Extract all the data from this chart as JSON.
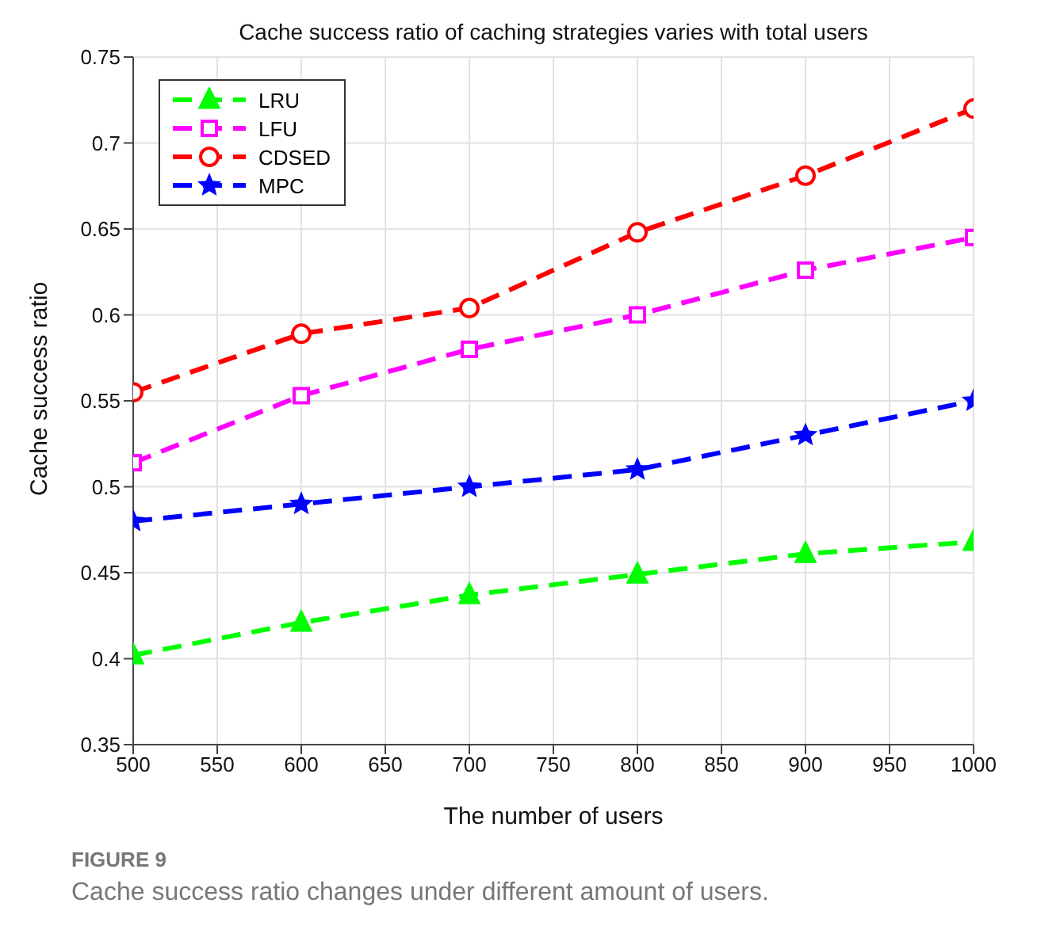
{
  "chart_data": {
    "type": "line",
    "title": "Cache success ratio of caching strategies varies with total users",
    "xlabel": "The number of users",
    "ylabel": "Cache success ratio",
    "annotations": [
      "FIGURE 9",
      "Cache success ratio changes under different amount of users."
    ],
    "x": [
      500,
      600,
      700,
      800,
      900,
      1000
    ],
    "series": [
      {
        "name": "LRU",
        "color": "#00ff00",
        "marker": "triangle",
        "values": [
          0.402,
          0.421,
          0.437,
          0.449,
          0.461,
          0.468
        ]
      },
      {
        "name": "LFU",
        "color": "#ff00ff",
        "marker": "square",
        "values": [
          0.514,
          0.553,
          0.58,
          0.6,
          0.626,
          0.645
        ]
      },
      {
        "name": "CDSED",
        "color": "#ff0000",
        "marker": "circle",
        "values": [
          0.555,
          0.589,
          0.604,
          0.648,
          0.681,
          0.72
        ]
      },
      {
        "name": "MPC",
        "color": "#0000ff",
        "marker": "star",
        "values": [
          0.48,
          0.49,
          0.5,
          0.51,
          0.53,
          0.55
        ]
      }
    ],
    "xlim": [
      500,
      1000
    ],
    "xticks": [
      500,
      550,
      600,
      650,
      700,
      750,
      800,
      850,
      900,
      950,
      1000
    ],
    "ylim": [
      0.35,
      0.75
    ],
    "yticks": [
      0.35,
      0.4,
      0.45,
      0.5,
      0.55,
      0.6,
      0.65,
      0.7,
      0.75
    ],
    "grid": true,
    "legend": "top left",
    "line_style": "dashed"
  }
}
